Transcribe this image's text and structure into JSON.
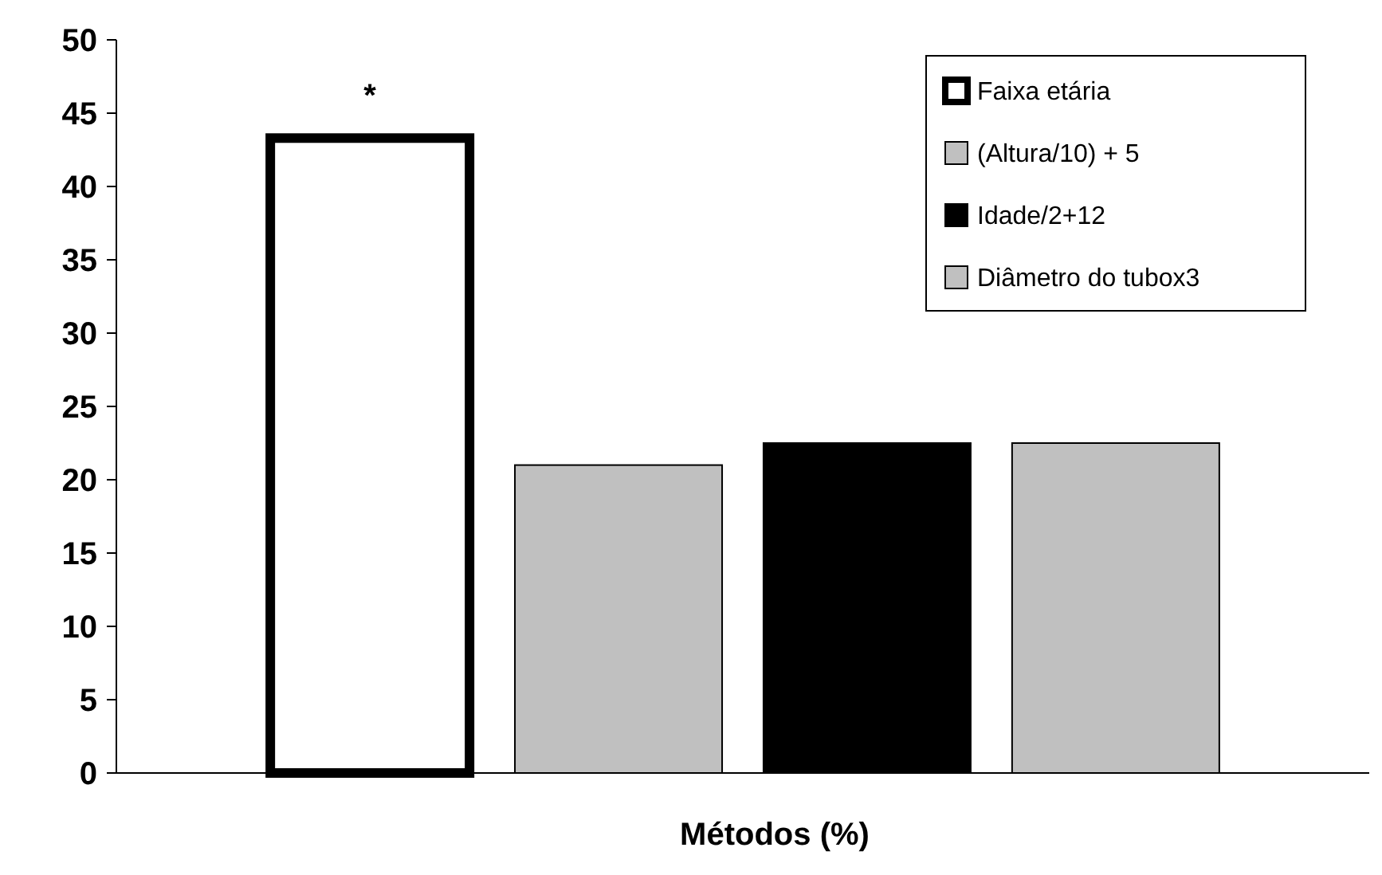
{
  "chart_data": {
    "type": "bar",
    "xlabel": "Métodos (%)",
    "categories": [
      null
    ],
    "series": [
      {
        "name": "Faixa etária",
        "color": "#ffffff",
        "values": [
          43.3
        ]
      },
      {
        "name": "(Altura/10) + 5",
        "color": "#c0c0c0",
        "values": [
          21
        ]
      },
      {
        "name": "Idade/2+12",
        "color": "#000000",
        "values": [
          22.5
        ]
      },
      {
        "name": "Diâmetro do tubox3",
        "color": "#c0c0c0",
        "values": [
          22.5
        ]
      }
    ],
    "ylim": [
      0,
      50
    ],
    "yticks": [
      0,
      5,
      10,
      15,
      20,
      25,
      30,
      35,
      40,
      45,
      50
    ],
    "grid": false,
    "legend": "top right",
    "annotations": [
      "*"
    ]
  }
}
